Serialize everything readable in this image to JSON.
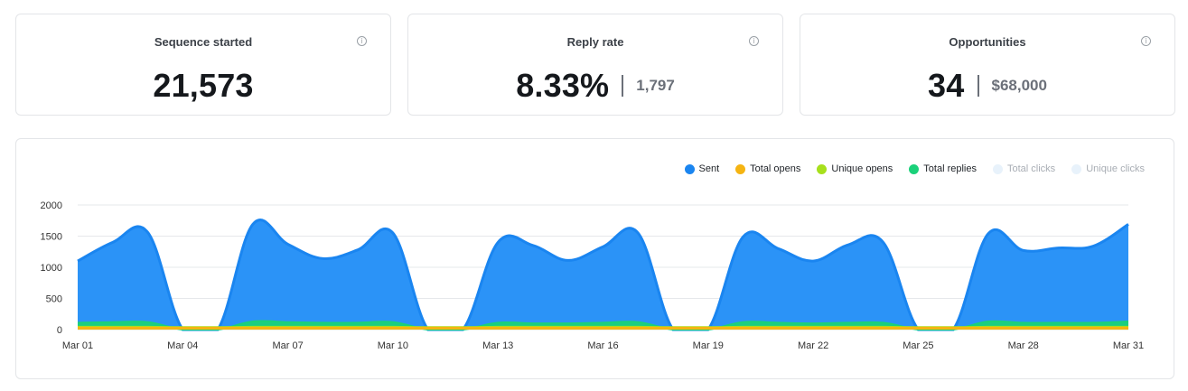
{
  "cards": [
    {
      "title": "Sequence started",
      "value": "21,573",
      "sub": ""
    },
    {
      "title": "Reply rate",
      "value": "8.33%",
      "sub": "1,797"
    },
    {
      "title": "Opportunities",
      "value": "34",
      "sub": "$68,000"
    }
  ],
  "info_icon_glyph": "i",
  "legend": [
    {
      "name": "Sent",
      "color": "#1a85f0",
      "active": true
    },
    {
      "name": "Total opens",
      "color": "#f5b412",
      "active": true
    },
    {
      "name": "Unique opens",
      "color": "#a7e01c",
      "active": true
    },
    {
      "name": "Total replies",
      "color": "#1ad17a",
      "active": true
    },
    {
      "name": "Total clicks",
      "color": "#e8f2fb",
      "active": false
    },
    {
      "name": "Unique clicks",
      "color": "#e8f2fb",
      "active": false
    }
  ],
  "chart_data": {
    "type": "area",
    "x": [
      "Mar 01",
      "Mar 02",
      "Mar 03",
      "Mar 04",
      "Mar 05",
      "Mar 06",
      "Mar 07",
      "Mar 08",
      "Mar 09",
      "Mar 10",
      "Mar 11",
      "Mar 12",
      "Mar 13",
      "Mar 14",
      "Mar 15",
      "Mar 16",
      "Mar 17",
      "Mar 18",
      "Mar 19",
      "Mar 20",
      "Mar 21",
      "Mar 22",
      "Mar 23",
      "Mar 24",
      "Mar 25",
      "Mar 26",
      "Mar 27",
      "Mar 28",
      "Mar 29",
      "Mar 30",
      "Mar 31"
    ],
    "x_tick_labels": [
      "Mar 01",
      "Mar 04",
      "Mar 07",
      "Mar 10",
      "Mar 13",
      "Mar 16",
      "Mar 19",
      "Mar 22",
      "Mar 25",
      "Mar 28",
      "Mar 31"
    ],
    "y_ticks": [
      0,
      500,
      1000,
      1500,
      2000
    ],
    "ylim": [
      0,
      2000
    ],
    "series": [
      {
        "name": "Sent",
        "color": "#1a85f0",
        "values": [
          1100,
          1400,
          1560,
          0,
          0,
          1690,
          1370,
          1140,
          1280,
          1550,
          0,
          0,
          1400,
          1350,
          1110,
          1330,
          1550,
          0,
          0,
          1490,
          1300,
          1100,
          1360,
          1400,
          0,
          0,
          1540,
          1270,
          1310,
          1340,
          1690
        ]
      },
      {
        "name": "Total replies",
        "color": "#1ad17a",
        "values": [
          110,
          120,
          120,
          0,
          0,
          130,
          120,
          110,
          110,
          120,
          0,
          0,
          110,
          100,
          100,
          110,
          120,
          0,
          0,
          120,
          110,
          100,
          110,
          110,
          0,
          0,
          130,
          110,
          110,
          110,
          130
        ]
      },
      {
        "name": "Unique opens",
        "color": "#a7e01c",
        "values": [
          45,
          45,
          45,
          40,
          40,
          45,
          45,
          45,
          45,
          45,
          40,
          40,
          45,
          45,
          45,
          45,
          45,
          40,
          40,
          45,
          45,
          45,
          45,
          45,
          40,
          40,
          45,
          45,
          45,
          45,
          45
        ]
      },
      {
        "name": "Total opens",
        "color": "#f5b412",
        "values": [
          30,
          30,
          30,
          30,
          30,
          30,
          30,
          30,
          30,
          30,
          30,
          30,
          30,
          30,
          30,
          30,
          30,
          30,
          30,
          30,
          30,
          30,
          30,
          30,
          30,
          30,
          30,
          30,
          30,
          30,
          30
        ]
      }
    ],
    "grid": true
  }
}
